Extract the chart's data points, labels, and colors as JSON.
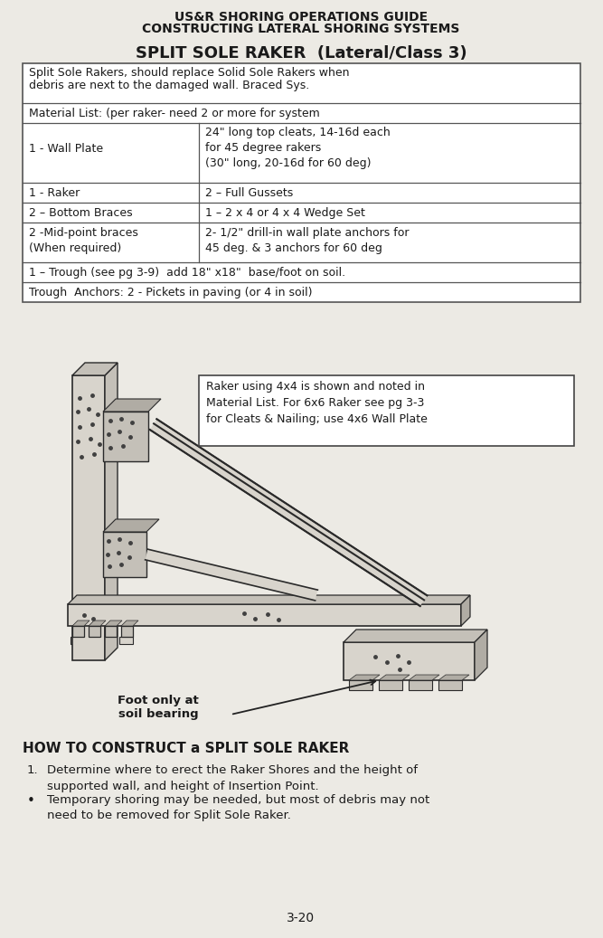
{
  "bg_color": "#eceae4",
  "title_line1": "US&R SHORING OPERATIONS GUIDE",
  "title_line2": "CONSTRUCTING LATERAL SHORING SYSTEMS",
  "subtitle": "SPLIT SOLE RAKER  (Lateral/Class 3)",
  "table_intro1": "Split Sole Rakers, should replace Solid Sole Rakers when",
  "table_intro2": "debris are next to the damaged wall. Braced Sys.",
  "material_header": "Material List: (per raker- need 2 or more for system",
  "row1_left": "1 - Wall Plate",
  "row1_right": "24\" long top cleats, 14-16d each\nfor 45 degree rakers\n(30\" long, 20-16d for 60 deg)",
  "row2_left": "1 - Raker",
  "row2_right": "2 – Full Gussets",
  "row3_left": "2 – Bottom Braces",
  "row3_right": "1 – 2 x 4 or 4 x 4 Wedge Set",
  "row4_left": "2 -Mid-point braces\n(When required)",
  "row4_right": "2- 1/2\" drill-in wall plate anchors for\n45 deg. & 3 anchors for 60 deg",
  "row5": "1 – Trough (see pg 3-9)  add 18\" x18\"  base/foot on soil.",
  "row6": "Trough  Anchors: 2 - Pickets in paving (or 4 in soil)",
  "callout": "Raker using 4x4 is shown and noted in\nMaterial List. For 6x6 Raker see pg 3-3\nfor Cleats & Nailing; use 4x6 Wall Plate",
  "label_foot": "Foot only at\nsoil bearing",
  "section_title": "HOW TO CONSTRUCT a SPLIT SOLE RAKER",
  "item1_num": "1.",
  "item1_text": "Determine where to erect the Raker Shores and the height of\nsupported wall, and height of Insertion Point.",
  "item2_text": "Temporary shoring may be needed, but most of debris may not\nneed to be removed for Split Sole Raker.",
  "page_num": "3-20",
  "edge_color": "#555555",
  "draw_color": "#2a2a2a",
  "face_light": "#d8d4cc",
  "face_mid": "#c4c0b8",
  "face_dark": "#b0aca4"
}
